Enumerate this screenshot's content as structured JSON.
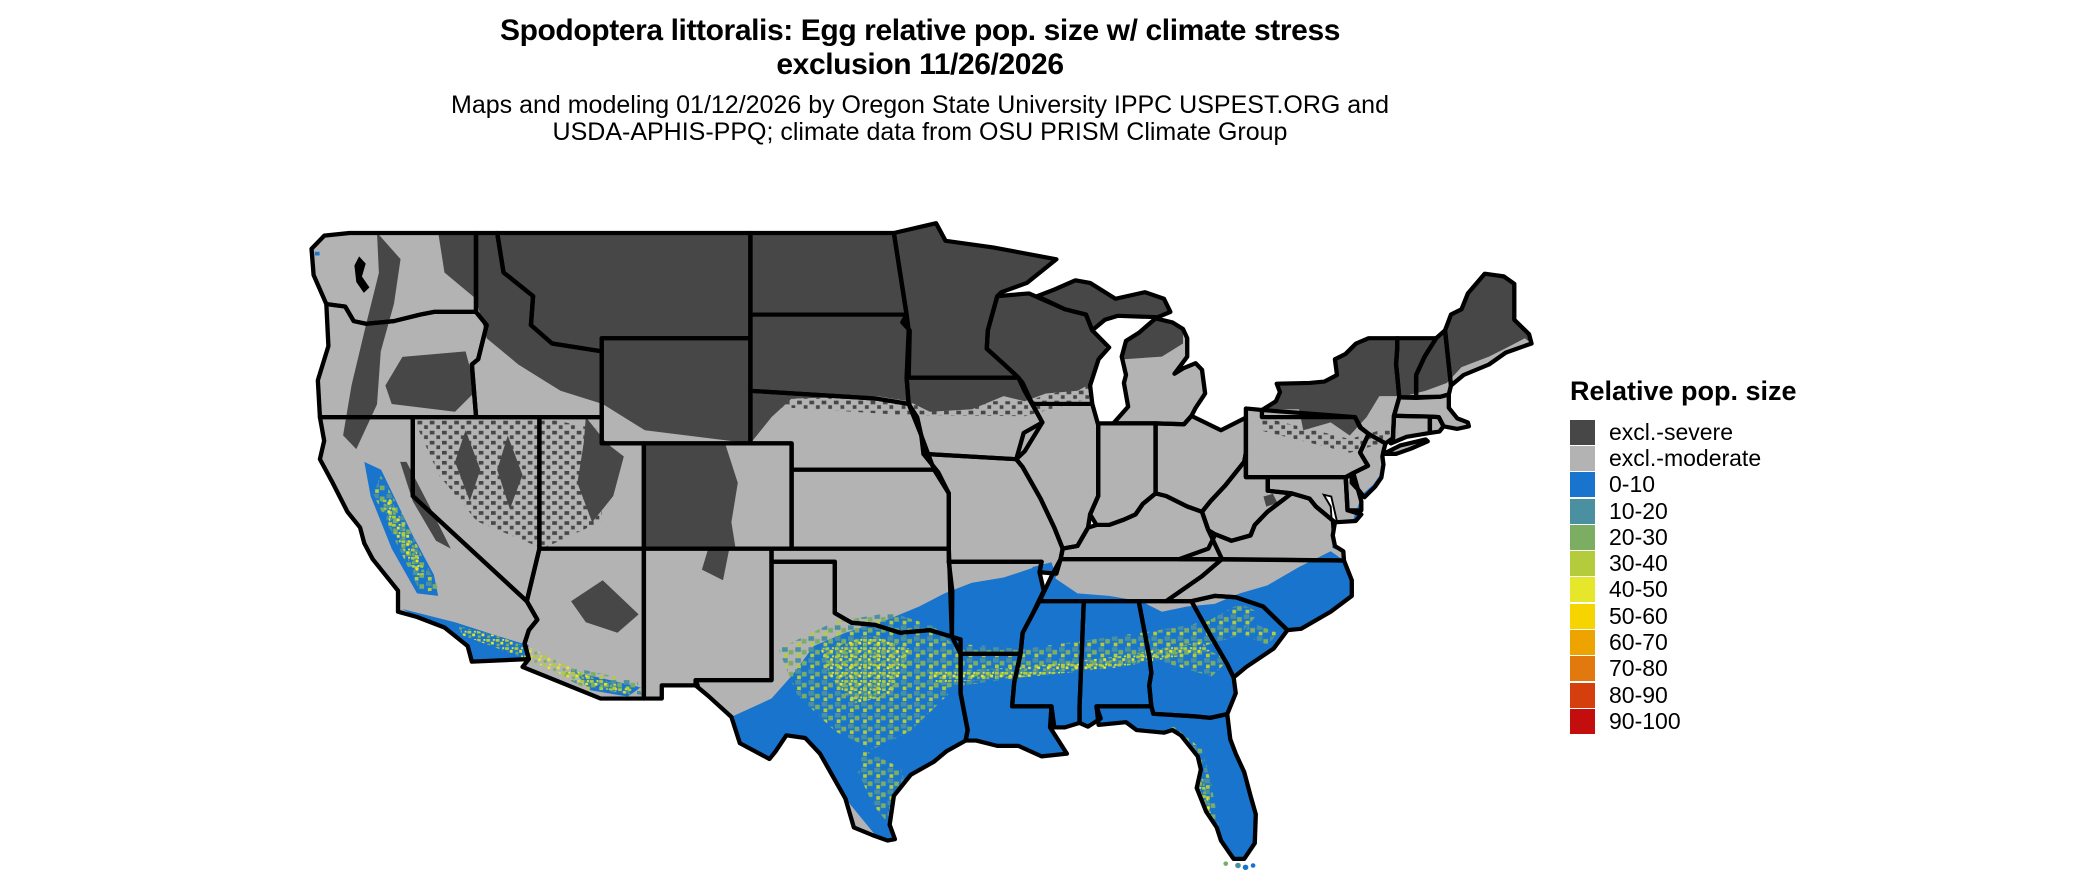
{
  "title": {
    "line1": "Spodoptera littoralis: Egg relative pop. size w/ climate stress",
    "line2": "exclusion 11/26/2026"
  },
  "subtitle": {
    "line1": "Maps and modeling 01/12/2026 by Oregon State University IPPC USPEST.ORG and",
    "line2": "USDA-APHIS-PPQ; climate data from OSU PRISM Climate Group"
  },
  "legend": {
    "title": "Relative pop. size",
    "items": [
      {
        "label": "excl.-severe",
        "color": "#474747"
      },
      {
        "label": "excl.-moderate",
        "color": "#b3b3b3"
      },
      {
        "label": "0-10",
        "color": "#1874cd"
      },
      {
        "label": "10-20",
        "color": "#4a90a0"
      },
      {
        "label": "20-30",
        "color": "#7bae63"
      },
      {
        "label": "30-40",
        "color": "#b4cc3c"
      },
      {
        "label": "40-50",
        "color": "#e6e72a"
      },
      {
        "label": "50-60",
        "color": "#f6d400"
      },
      {
        "label": "60-70",
        "color": "#eea400"
      },
      {
        "label": "70-80",
        "color": "#e1790f"
      },
      {
        "label": "80-90",
        "color": "#d53e0d"
      },
      {
        "label": "90-100",
        "color": "#c40d0d"
      }
    ]
  }
}
